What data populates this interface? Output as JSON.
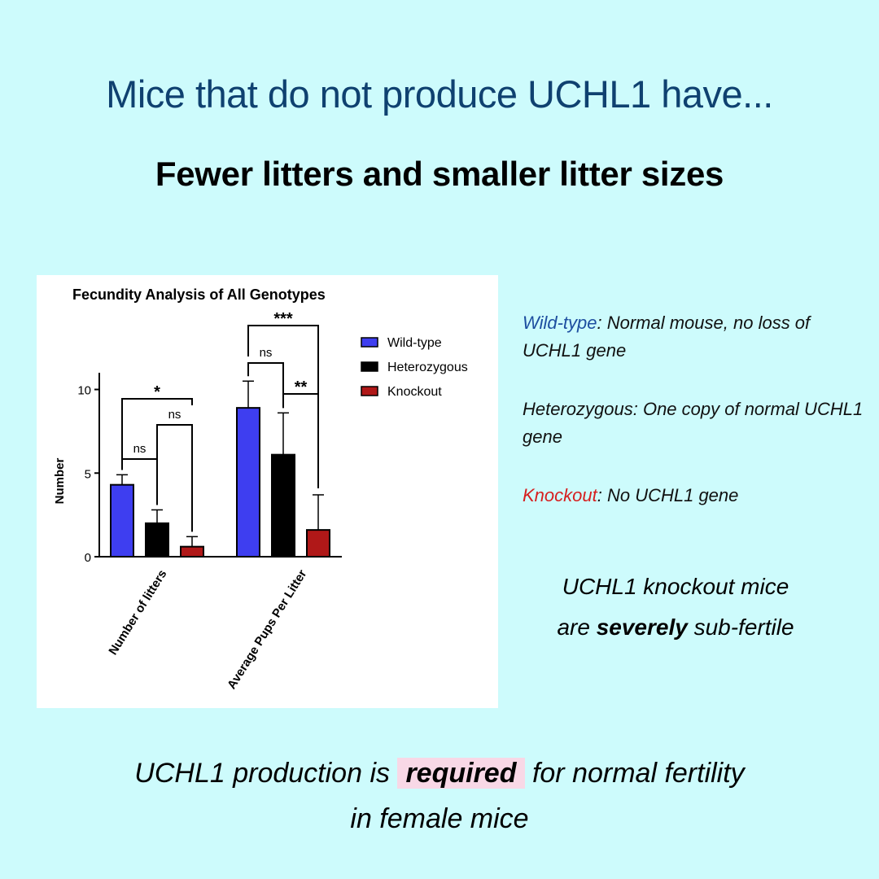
{
  "headline": "Mice that do not produce UCHL1 have...",
  "subheadline": "Fewer litters and smaller litter sizes",
  "definitions": {
    "wildtype": {
      "term": "Wild-type",
      "text": ": Normal mouse, no loss of UCHL1 gene"
    },
    "heterozygous": {
      "text": "Heterozygous: One copy of normal UCHL1 gene"
    },
    "knockout": {
      "term": "Knockout",
      "text": ": No UCHL1 gene"
    }
  },
  "conclusion": {
    "line1": "UCHL1 knockout mice",
    "line2_pre": "are ",
    "line2_bold": "severely",
    "line2_post": " sub-fertile"
  },
  "takeaway": {
    "pre": "UCHL1 production is ",
    "bold": "required",
    "post": " for normal fertility",
    "line2": "in female mice"
  },
  "chart_data": {
    "type": "bar",
    "title": "Fecundity Analysis of  All Genotypes",
    "xlabel": "",
    "ylabel": "Number",
    "ylim": [
      0,
      11
    ],
    "yticks": [
      0,
      5,
      10
    ],
    "categories": [
      "Number of litters",
      "Average Pups Per Litter"
    ],
    "series": [
      {
        "name": "Wild-type",
        "color": "#3e3ef0",
        "values": [
          4.3,
          8.9
        ],
        "errors": [
          0.6,
          1.6
        ]
      },
      {
        "name": "Heterozygous",
        "color": "#000000",
        "values": [
          2.0,
          6.1
        ],
        "errors": [
          0.8,
          2.5
        ]
      },
      {
        "name": "Knockout",
        "color": "#b01818",
        "values": [
          0.6,
          1.6
        ],
        "errors": [
          0.6,
          2.1
        ]
      }
    ],
    "significance": [
      {
        "category": 0,
        "from": 0,
        "to": 1,
        "label": "ns"
      },
      {
        "category": 0,
        "from": 0,
        "to": 2,
        "label": "*"
      },
      {
        "category": 0,
        "from": 1,
        "to": 2,
        "label": "ns"
      },
      {
        "category": 1,
        "from": 0,
        "to": 1,
        "label": "ns"
      },
      {
        "category": 1,
        "from": 0,
        "to": 2,
        "label": "***"
      },
      {
        "category": 1,
        "from": 1,
        "to": 2,
        "label": "**"
      }
    ],
    "legend": "top-right"
  }
}
